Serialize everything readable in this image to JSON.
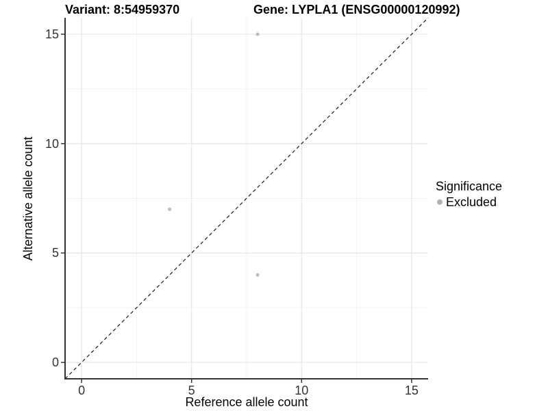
{
  "chart_data": {
    "type": "scatter",
    "title_left": "Variant: 8:54959370",
    "title_right": "Gene: LYPLA1 (ENSG00000120992)",
    "xlabel": "Reference allele count",
    "ylabel": "Alternative allele count",
    "xlim": [
      -0.75,
      15.75
    ],
    "ylim": [
      -0.75,
      15.75
    ],
    "x_major_ticks": [
      0,
      5,
      10,
      15
    ],
    "y_major_ticks": [
      0,
      5,
      10,
      15
    ],
    "x_minor_gridlines": [
      2.5,
      7.5,
      12.5
    ],
    "y_minor_gridlines": [
      2.5,
      7.5,
      12.5
    ],
    "grid": "major and minor gridlines, light grey on white panel",
    "identity_line": {
      "style": "dashed",
      "x1": -0.75,
      "y1": -0.75,
      "x2": 15.75,
      "y2": 15.75
    },
    "series": [
      {
        "name": "Excluded",
        "marker": "circle",
        "color": "#bdbdbd",
        "points": [
          [
            8,
            15
          ],
          [
            4,
            7
          ],
          [
            8,
            4
          ]
        ]
      }
    ],
    "legend": {
      "position": "right",
      "title": "Significance",
      "items": [
        {
          "label": "Excluded",
          "color": "#b4b4b4"
        }
      ]
    }
  },
  "colors": {
    "background": "#ffffff",
    "axis_line": "#333333",
    "tick_mark": "#333333",
    "tick_label": "#333333",
    "major_grid": "#e6e6e6",
    "minor_grid": "#f2f2f2",
    "point": "#bdbdbd",
    "identity_line": "#1a1a1a"
  }
}
